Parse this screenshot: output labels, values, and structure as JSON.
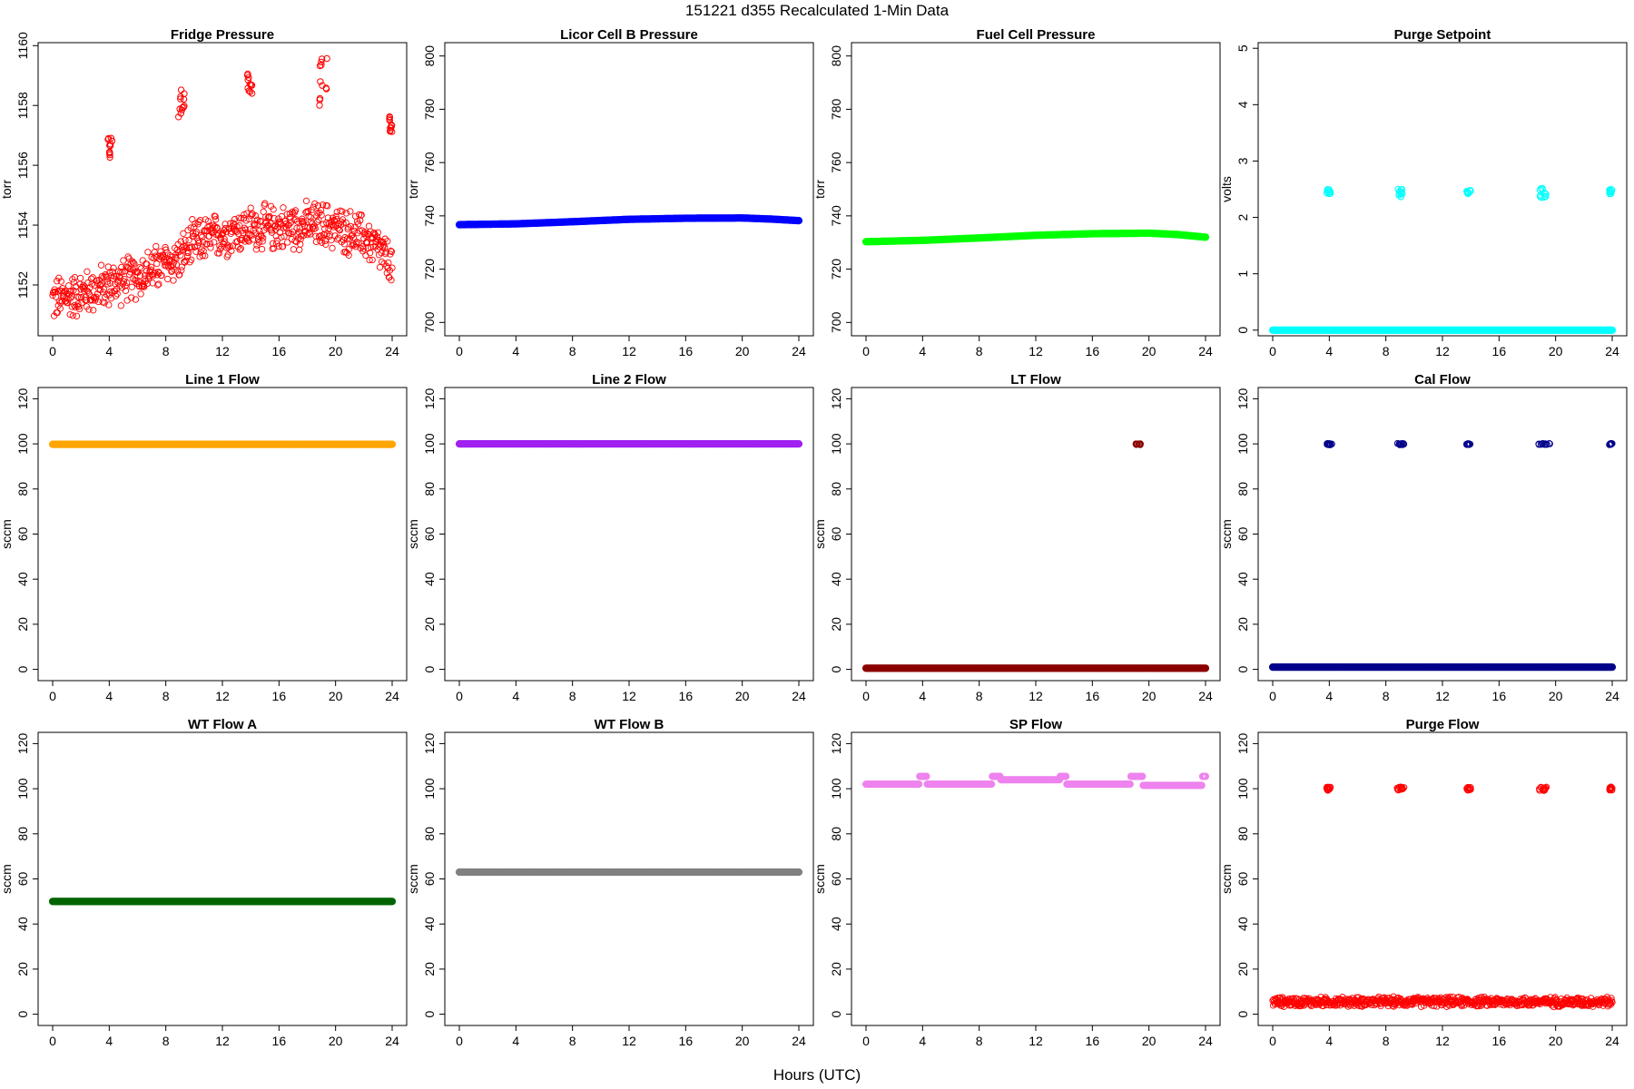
{
  "figure": {
    "title": "151221   d355   Recalculated 1-Min Data",
    "xlabel": "Hours (UTC)"
  },
  "chart_data": [
    {
      "type": "scatter",
      "title": "Fridge Pressure",
      "ylabel": "torr",
      "color": "#ff0000",
      "xlim": [
        0,
        24
      ],
      "ylim": [
        1150.3,
        1160.1
      ],
      "xticks": [
        0,
        4,
        8,
        12,
        16,
        20,
        24
      ],
      "yticks": [
        1152,
        1154,
        1156,
        1158,
        1160
      ],
      "style": "noisy",
      "baseline": [
        [
          0,
          1151.5
        ],
        [
          2,
          1151.7
        ],
        [
          4,
          1152.0
        ],
        [
          6,
          1152.3
        ],
        [
          8,
          1152.7
        ],
        [
          9,
          1152.9
        ],
        [
          10,
          1153.4
        ],
        [
          12,
          1153.7
        ],
        [
          14,
          1153.9
        ],
        [
          16,
          1153.9
        ],
        [
          18,
          1154.0
        ],
        [
          19.5,
          1154.0
        ],
        [
          20,
          1153.9
        ],
        [
          22,
          1153.6
        ],
        [
          23,
          1153.2
        ],
        [
          24,
          1152.6
        ]
      ],
      "noise": 0.9,
      "spikes": [
        {
          "x": [
            3.8,
            4.2
          ],
          "y": [
            1156.0,
            1157.0
          ]
        },
        {
          "x": [
            8.9,
            9.4
          ],
          "y": [
            1157.6,
            1158.6
          ]
        },
        {
          "x": [
            13.7,
            14.1
          ],
          "y": [
            1158.4,
            1159.2
          ]
        },
        {
          "x": [
            18.8,
            19.4
          ],
          "y": [
            1158.0,
            1159.8
          ]
        },
        {
          "x": [
            23.8,
            24.0
          ],
          "y": [
            1157.1,
            1157.7
          ]
        }
      ]
    },
    {
      "type": "scatter",
      "title": "Licor Cell B Pressure",
      "ylabel": "torr",
      "color": "#0000ff",
      "xlim": [
        0,
        24
      ],
      "ylim": [
        695,
        805
      ],
      "xticks": [
        0,
        4,
        8,
        12,
        16,
        20,
        24
      ],
      "yticks": [
        700,
        720,
        740,
        760,
        780,
        800
      ],
      "style": "line",
      "baseline": [
        [
          0,
          736.7
        ],
        [
          4,
          737.0
        ],
        [
          8,
          737.8
        ],
        [
          12,
          738.7
        ],
        [
          16,
          739.1
        ],
        [
          20,
          739.2
        ],
        [
          22,
          738.8
        ],
        [
          24,
          738.2
        ]
      ]
    },
    {
      "type": "scatter",
      "title": "Fuel Cell Pressure",
      "ylabel": "torr",
      "color": "#00ff00",
      "xlim": [
        0,
        24
      ],
      "ylim": [
        695,
        805
      ],
      "xticks": [
        0,
        4,
        8,
        12,
        16,
        20,
        24
      ],
      "yticks": [
        700,
        720,
        740,
        760,
        780,
        800
      ],
      "style": "line",
      "baseline": [
        [
          0,
          730.3
        ],
        [
          4,
          730.8
        ],
        [
          8,
          731.7
        ],
        [
          12,
          732.7
        ],
        [
          16,
          733.3
        ],
        [
          20,
          733.5
        ],
        [
          22,
          733.0
        ],
        [
          24,
          732.0
        ]
      ]
    },
    {
      "type": "scatter",
      "title": "Purge Setpoint",
      "ylabel": "volts",
      "color": "#00ffff",
      "xlim": [
        0,
        24
      ],
      "ylim": [
        -0.1,
        5.1
      ],
      "xticks": [
        0,
        4,
        8,
        12,
        16,
        20,
        24
      ],
      "yticks": [
        0,
        1,
        2,
        3,
        4,
        5
      ],
      "style": "line",
      "baseline": [
        [
          0,
          0
        ],
        [
          24,
          0
        ]
      ],
      "spikes": [
        {
          "x": [
            3.8,
            4.1
          ],
          "y": [
            2.42,
            2.5
          ]
        },
        {
          "x": [
            8.8,
            9.2
          ],
          "y": [
            2.35,
            2.5
          ]
        },
        {
          "x": [
            13.7,
            14.0
          ],
          "y": [
            2.42,
            2.48
          ]
        },
        {
          "x": [
            18.8,
            19.4
          ],
          "y": [
            2.35,
            2.52
          ]
        },
        {
          "x": [
            23.8,
            24.0
          ],
          "y": [
            2.42,
            2.5
          ]
        }
      ]
    },
    {
      "type": "scatter",
      "title": "Line 1 Flow",
      "ylabel": "sccm",
      "color": "#ffa500",
      "xlim": [
        0,
        24
      ],
      "ylim": [
        -5,
        125
      ],
      "xticks": [
        0,
        4,
        8,
        12,
        16,
        20,
        24
      ],
      "yticks": [
        0,
        20,
        40,
        60,
        80,
        100,
        120
      ],
      "style": "line",
      "baseline": [
        [
          0,
          99.8
        ],
        [
          24,
          99.8
        ]
      ]
    },
    {
      "type": "scatter",
      "title": "Line 2 Flow",
      "ylabel": "sccm",
      "color": "#a020f0",
      "xlim": [
        0,
        24
      ],
      "ylim": [
        -5,
        125
      ],
      "xticks": [
        0,
        4,
        8,
        12,
        16,
        20,
        24
      ],
      "yticks": [
        0,
        20,
        40,
        60,
        80,
        100,
        120
      ],
      "style": "line",
      "baseline": [
        [
          0,
          100
        ],
        [
          24,
          100
        ]
      ]
    },
    {
      "type": "scatter",
      "title": "LT Flow",
      "ylabel": "sccm",
      "color": "#8b0000",
      "xlim": [
        0,
        24
      ],
      "ylim": [
        -5,
        125
      ],
      "xticks": [
        0,
        4,
        8,
        12,
        16,
        20,
        24
      ],
      "yticks": [
        0,
        20,
        40,
        60,
        80,
        100,
        120
      ],
      "style": "line",
      "baseline": [
        [
          0,
          0.5
        ],
        [
          24,
          0.5
        ]
      ],
      "spikes": [
        {
          "x": [
            19.0,
            19.4
          ],
          "y": [
            99.6,
            100.2
          ]
        }
      ]
    },
    {
      "type": "scatter",
      "title": "Cal Flow",
      "ylabel": "sccm",
      "color": "#00008b",
      "xlim": [
        0,
        24
      ],
      "ylim": [
        -5,
        125
      ],
      "xticks": [
        0,
        4,
        8,
        12,
        16,
        20,
        24
      ],
      "yticks": [
        0,
        20,
        40,
        60,
        80,
        100,
        120
      ],
      "style": "line",
      "baseline": [
        [
          0,
          1
        ],
        [
          24,
          1
        ]
      ],
      "spikes": [
        {
          "x": [
            3.8,
            4.2
          ],
          "y": [
            99.6,
            100.2
          ]
        },
        {
          "x": [
            8.8,
            9.3
          ],
          "y": [
            99.6,
            100.2
          ]
        },
        {
          "x": [
            13.7,
            14.0
          ],
          "y": [
            99.6,
            100.2
          ]
        },
        {
          "x": [
            18.8,
            19.6
          ],
          "y": [
            99.6,
            100.2
          ]
        },
        {
          "x": [
            23.8,
            24.0
          ],
          "y": [
            99.6,
            100.2
          ]
        }
      ]
    },
    {
      "type": "scatter",
      "title": "WT Flow A",
      "ylabel": "sccm",
      "color": "#006400",
      "xlim": [
        0,
        24
      ],
      "ylim": [
        -5,
        125
      ],
      "xticks": [
        0,
        4,
        8,
        12,
        16,
        20,
        24
      ],
      "yticks": [
        0,
        20,
        40,
        60,
        80,
        100,
        120
      ],
      "style": "line",
      "baseline": [
        [
          0,
          50
        ],
        [
          24,
          50
        ]
      ]
    },
    {
      "type": "scatter",
      "title": "WT Flow B",
      "ylabel": "sccm",
      "color": "#808080",
      "xlim": [
        0,
        24
      ],
      "ylim": [
        -5,
        125
      ],
      "xticks": [
        0,
        4,
        8,
        12,
        16,
        20,
        24
      ],
      "yticks": [
        0,
        20,
        40,
        60,
        80,
        100,
        120
      ],
      "style": "line",
      "baseline": [
        [
          0,
          63
        ],
        [
          24,
          63
        ]
      ]
    },
    {
      "type": "scatter",
      "title": "SP Flow",
      "ylabel": "sccm",
      "color": "#ee82ee",
      "xlim": [
        0,
        24
      ],
      "ylim": [
        -5,
        125
      ],
      "xticks": [
        0,
        4,
        8,
        12,
        16,
        20,
        24
      ],
      "yticks": [
        0,
        20,
        40,
        60,
        80,
        100,
        120
      ],
      "style": "steps",
      "baseline": [
        [
          0,
          102
        ],
        [
          3.8,
          105.5
        ],
        [
          4.3,
          102
        ],
        [
          8.9,
          105.5
        ],
        [
          9.5,
          104
        ],
        [
          13.7,
          105.5
        ],
        [
          14.2,
          102
        ],
        [
          18.7,
          105.5
        ],
        [
          19.6,
          101.5
        ],
        [
          23.8,
          105.5
        ]
      ]
    },
    {
      "type": "scatter",
      "title": "Purge Flow",
      "ylabel": "sccm",
      "color": "#ff0000",
      "xlim": [
        0,
        24
      ],
      "ylim": [
        -5,
        125
      ],
      "xticks": [
        0,
        4,
        8,
        12,
        16,
        20,
        24
      ],
      "yticks": [
        0,
        20,
        40,
        60,
        80,
        100,
        120
      ],
      "style": "noisy",
      "baseline": [
        [
          0,
          5.5
        ],
        [
          24,
          5.5
        ]
      ],
      "noise": 2.5,
      "spikes": [
        {
          "x": [
            3.8,
            4.1
          ],
          "y": [
            99.2,
            100.8
          ]
        },
        {
          "x": [
            8.8,
            9.3
          ],
          "y": [
            99.2,
            100.8
          ]
        },
        {
          "x": [
            13.7,
            14.0
          ],
          "y": [
            99.2,
            100.8
          ]
        },
        {
          "x": [
            18.8,
            19.4
          ],
          "y": [
            99.2,
            100.8
          ]
        },
        {
          "x": [
            23.8,
            24.0
          ],
          "y": [
            99.2,
            100.8
          ]
        }
      ]
    }
  ]
}
